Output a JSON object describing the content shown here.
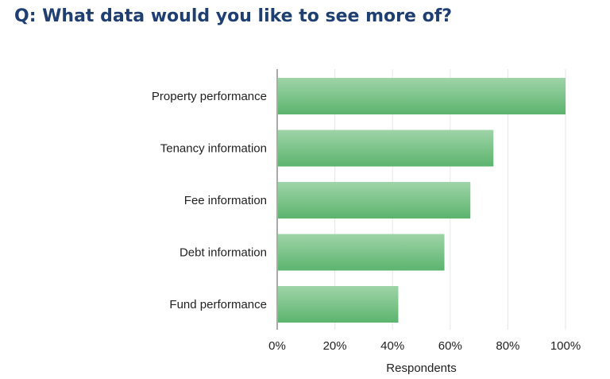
{
  "title": "Q: What data would you like to see more of?",
  "chart_data": {
    "type": "bar",
    "orientation": "horizontal",
    "categories": [
      "Property performance",
      "Tenancy information",
      "Fee information",
      "Debt information",
      "Fund performance"
    ],
    "values": [
      100,
      75,
      67,
      58,
      42
    ],
    "xlabel": "Respondents",
    "ylabel": "",
    "xlim": [
      0,
      100
    ],
    "x_ticks": [
      "0%",
      "20%",
      "40%",
      "60%",
      "80%",
      "100%"
    ],
    "x_tick_values": [
      0,
      20,
      40,
      60,
      80,
      100
    ],
    "grid": true,
    "colors": {
      "bar_top": "#9fd4a8",
      "bar_bottom": "#5cb46e",
      "grid": "#e6e6e6",
      "axis": "#555555"
    }
  }
}
